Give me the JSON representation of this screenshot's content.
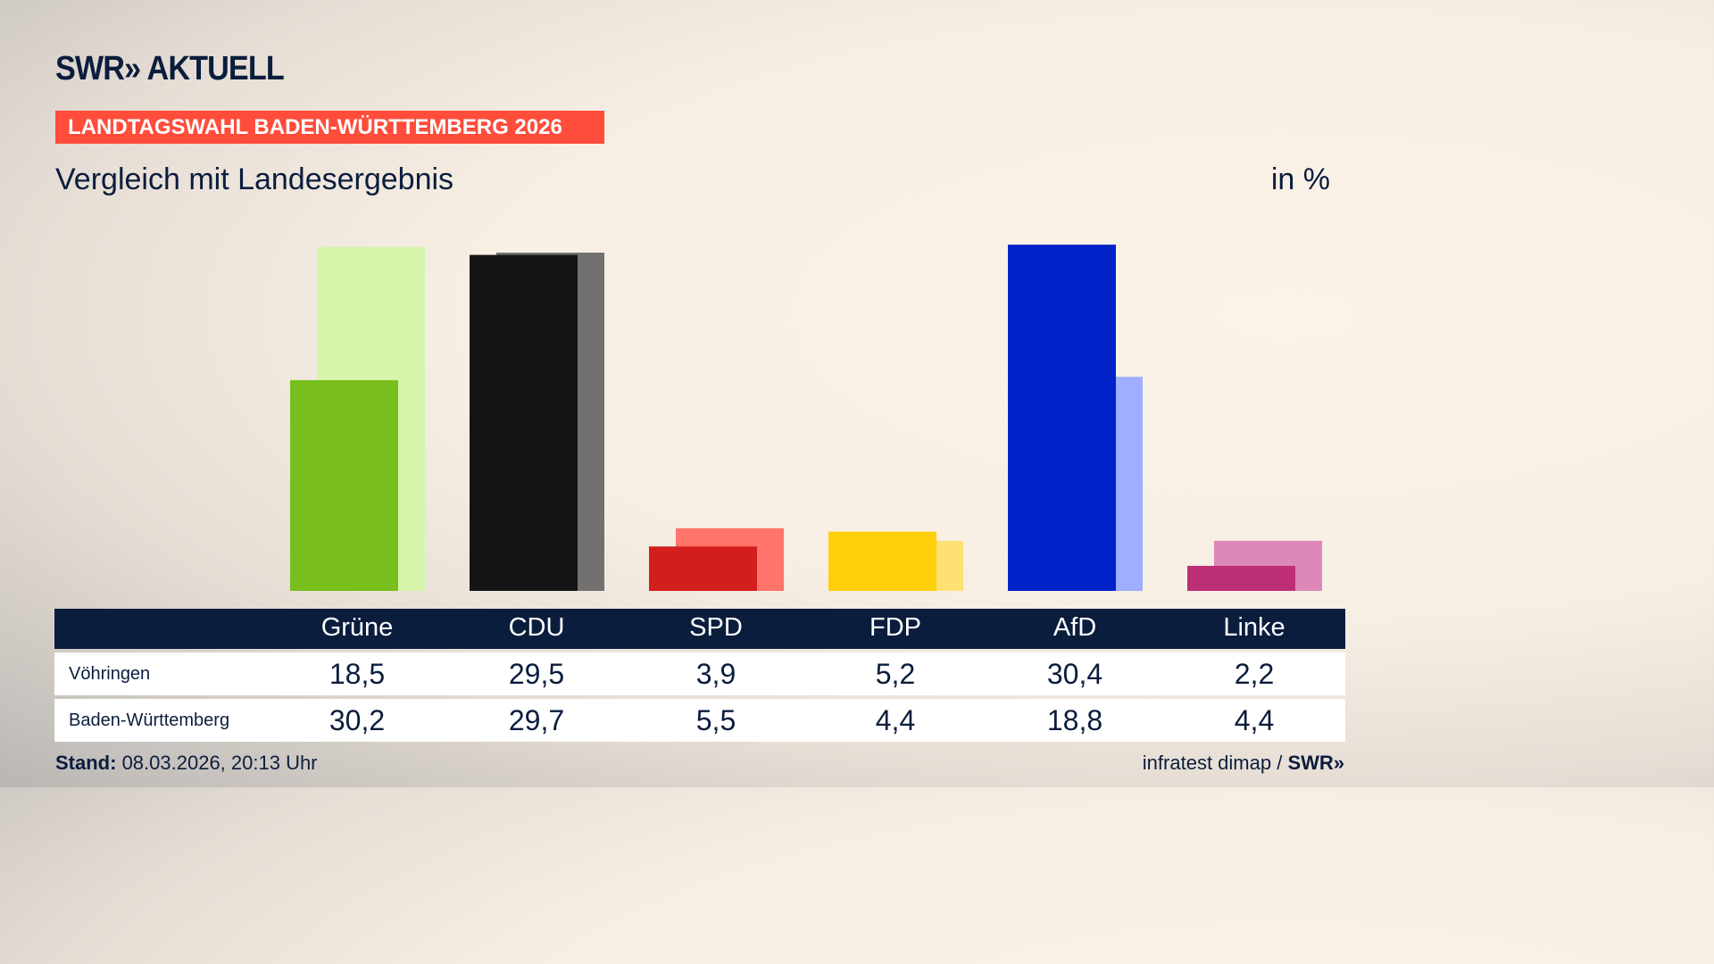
{
  "header": {
    "logo": "SWR» AKTUELL",
    "kicker": "LANDTAGSWAHL BADEN-WÜRTTEMBERG 2026",
    "subtitle": "Vergleich mit Landesergebnis",
    "unit": "in %"
  },
  "chart_data": {
    "type": "bar",
    "ylim": [
      0,
      31
    ],
    "grid": false,
    "categories": [
      "Grüne",
      "CDU",
      "SPD",
      "FDP",
      "AfD",
      "Linke"
    ],
    "series": [
      {
        "name": "Vöhringen",
        "values": [
          18.5,
          29.5,
          3.9,
          5.2,
          30.4,
          2.2
        ],
        "colors": [
          "#78be1c",
          "#141414",
          "#d41e1e",
          "#ffcf0a",
          "#0022c8",
          "#bd2f75"
        ]
      },
      {
        "name": "Baden-Württemberg",
        "values": [
          30.2,
          29.7,
          5.5,
          4.4,
          18.8,
          4.4
        ],
        "colors": [
          "#d6f5aa",
          "#737170",
          "#ff756b",
          "#ffe173",
          "#9faeff",
          "#dd88b8"
        ]
      }
    ]
  },
  "table": {
    "rows": [
      {
        "label": "Vöhringen",
        "values": [
          "18,5",
          "29,5",
          "3,9",
          "5,2",
          "30,4",
          "2,2"
        ]
      },
      {
        "label": "Baden-Württemberg",
        "values": [
          "30,2",
          "29,7",
          "5,5",
          "4,4",
          "18,8",
          "4,4"
        ]
      }
    ]
  },
  "footer": {
    "stand_label": "Stand:",
    "stand_value": " 08.03.2026, 20:13 Uhr",
    "source": "infratest dimap / ",
    "source_logo": "SWR»"
  }
}
